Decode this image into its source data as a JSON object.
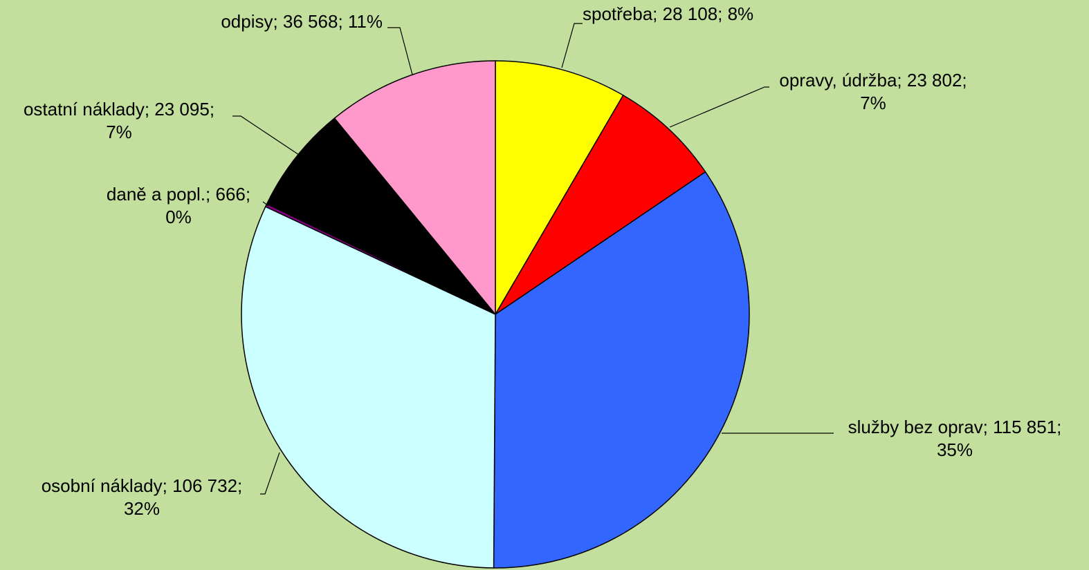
{
  "chart_data": {
    "type": "pie",
    "values": [
      28108,
      23802,
      115851,
      106732,
      666,
      23095,
      36568
    ],
    "labels": [
      [
        "spotřeba; 28 108; 8%"
      ],
      [
        "opravy, údržba; 23 802;",
        "7%"
      ],
      [
        "služby bez oprav; 115 851;",
        "35%"
      ],
      [
        "osobní náklady; 106 732;",
        "32%"
      ],
      [
        "daně a popl.; 666;",
        "0%"
      ],
      [
        "ostatní náklady; 23 095;",
        "7%"
      ],
      [
        "odpisy; 36 568; 11%"
      ]
    ],
    "colors": [
      "#ffff00",
      "#ff0000",
      "#3366ff",
      "#ccffff",
      "#800080",
      "#000000",
      "#ff99cc"
    ]
  }
}
